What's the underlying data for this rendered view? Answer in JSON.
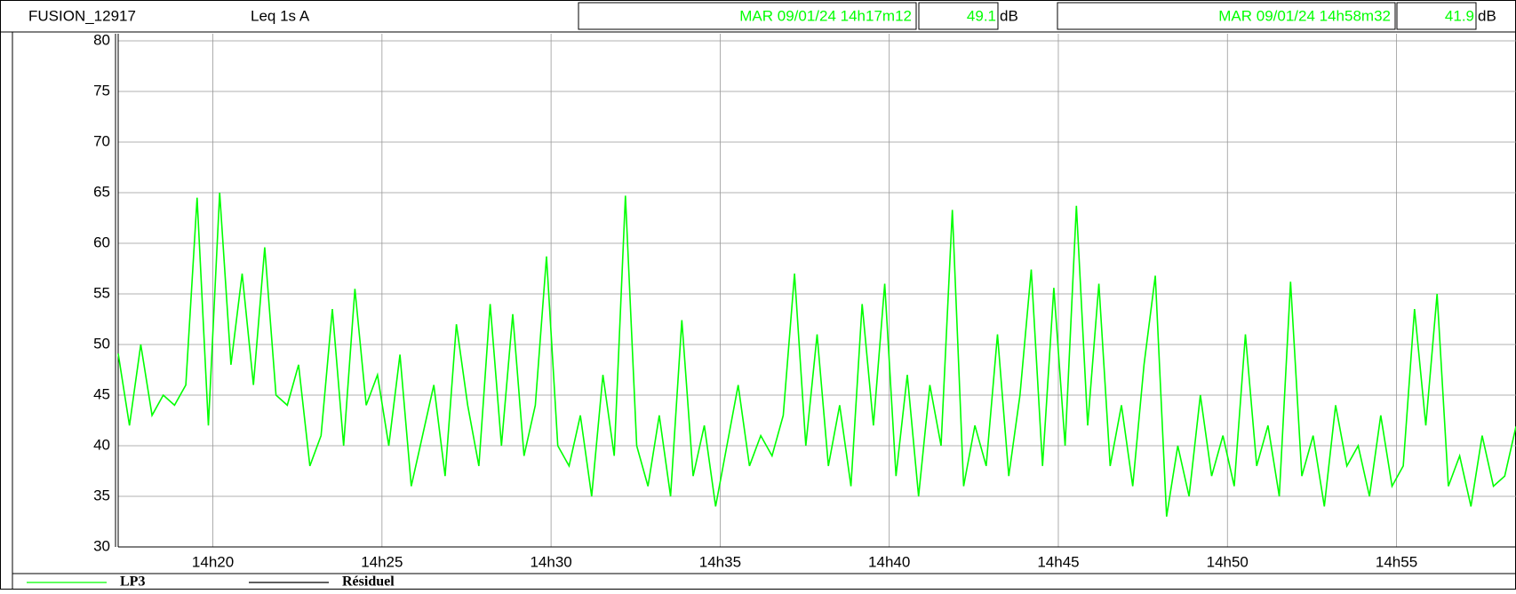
{
  "header": {
    "title": "FUSION_12917",
    "measure": "Leq 1s A",
    "cursor1": {
      "time": "MAR 09/01/24 14h17m12",
      "value": "49.1",
      "unit": "dB"
    },
    "cursor2": {
      "time": "MAR 09/01/24 14h58m32",
      "value": "41.9",
      "unit": "dB"
    }
  },
  "chart_data": {
    "type": "line",
    "x": [
      "14h17m12",
      "14h17m32",
      "14h17m52",
      "14h18m12",
      "14h18m32",
      "14h18m52",
      "14h19m12",
      "14h19m32",
      "14h19m52",
      "14h20m12",
      "14h20m32",
      "14h20m52",
      "14h21m12",
      "14h21m32",
      "14h21m52",
      "14h22m12",
      "14h22m32",
      "14h22m52",
      "14h23m12",
      "14h23m32",
      "14h23m52",
      "14h24m12",
      "14h24m32",
      "14h24m52",
      "14h25m12",
      "14h25m32",
      "14h25m52",
      "14h26m12",
      "14h26m32",
      "14h26m52",
      "14h27m12",
      "14h27m32",
      "14h27m52",
      "14h28m12",
      "14h28m32",
      "14h28m52",
      "14h29m12",
      "14h29m32",
      "14h29m52",
      "14h30m12",
      "14h30m32",
      "14h30m52",
      "14h31m12",
      "14h31m32",
      "14h31m52",
      "14h32m12",
      "14h32m32",
      "14h32m52",
      "14h33m12",
      "14h33m32",
      "14h33m52",
      "14h34m12",
      "14h34m32",
      "14h34m52",
      "14h35m12",
      "14h35m32",
      "14h35m52",
      "14h36m12",
      "14h36m32",
      "14h36m52",
      "14h37m12",
      "14h37m32",
      "14h37m52",
      "14h38m12",
      "14h38m32",
      "14h38m52",
      "14h39m12",
      "14h39m32",
      "14h39m52",
      "14h40m12",
      "14h40m32",
      "14h40m52",
      "14h41m12",
      "14h41m32",
      "14h41m52",
      "14h42m12",
      "14h42m32",
      "14h42m52",
      "14h43m12",
      "14h43m32",
      "14h43m52",
      "14h44m12",
      "14h44m32",
      "14h44m52",
      "14h45m12",
      "14h45m32",
      "14h45m52",
      "14h46m12",
      "14h46m32",
      "14h46m52",
      "14h47m12",
      "14h47m32",
      "14h47m52",
      "14h48m12",
      "14h48m32",
      "14h48m52",
      "14h49m12",
      "14h49m32",
      "14h49m52",
      "14h50m12",
      "14h50m32",
      "14h50m52",
      "14h51m12",
      "14h51m32",
      "14h51m52",
      "14h52m12",
      "14h52m32",
      "14h52m52",
      "14h53m12",
      "14h53m32",
      "14h53m52",
      "14h54m12",
      "14h54m32",
      "14h54m52",
      "14h55m12",
      "14h55m32",
      "14h55m52",
      "14h56m12",
      "14h56m32",
      "14h56m52",
      "14h57m12",
      "14h57m32",
      "14h57m52",
      "14h58m12",
      "14h58m32"
    ],
    "series": [
      {
        "name": "LP3",
        "color": "#00ff00",
        "values": [
          49.1,
          42,
          50,
          43,
          45,
          44,
          46,
          64.5,
          42,
          65,
          48,
          57,
          46,
          59.6,
          45,
          44,
          48,
          38,
          41,
          53.5,
          40,
          55.5,
          44,
          47,
          40,
          49,
          36,
          41,
          46,
          37,
          52,
          44,
          38,
          54,
          40,
          53,
          39,
          44,
          58.7,
          40,
          38,
          43,
          35,
          47,
          39,
          64.7,
          40,
          36,
          43,
          35,
          52.4,
          37,
          42,
          34,
          40,
          46,
          38,
          41,
          39,
          43,
          57,
          40,
          51,
          38,
          44,
          36,
          54,
          42,
          56,
          37,
          47,
          35,
          46,
          40,
          63.3,
          36,
          42,
          38,
          51,
          37,
          45,
          57.4,
          38,
          55.6,
          40,
          63.7,
          42,
          56,
          38,
          44,
          36,
          48,
          56.8,
          33,
          40,
          35,
          45,
          37,
          41,
          36,
          51,
          38,
          42,
          35,
          56.2,
          37,
          41,
          34,
          44,
          38,
          40,
          35,
          43,
          36,
          38,
          53.5,
          42,
          55,
          36,
          39,
          34,
          41,
          36,
          37,
          41.9
        ]
      },
      {
        "name": "Résiduel",
        "color": "#000000"
      }
    ],
    "xticks": [
      "14h20",
      "14h25",
      "14h30",
      "14h35",
      "14h40",
      "14h45",
      "14h50",
      "14h55"
    ],
    "xlim": [
      "14h17m12",
      "14h58m32"
    ],
    "ylim": [
      30,
      80
    ],
    "yticks": [
      30,
      35,
      40,
      45,
      50,
      55,
      60,
      65,
      70,
      75,
      80
    ],
    "grid": true
  }
}
